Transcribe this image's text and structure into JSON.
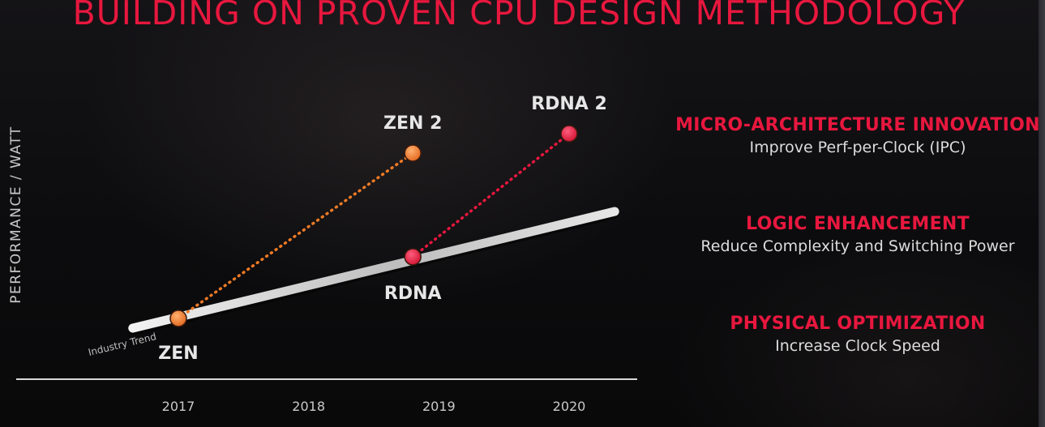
{
  "slide": {
    "title": "BUILDING ON PROVEN CPU DESIGN METHODOLOGY"
  },
  "chart_data": {
    "type": "line",
    "ylabel": "PERFORMANCE / WATT",
    "x_ticks": [
      "2017",
      "2018",
      "2019",
      "2020"
    ],
    "xlim": [
      2017,
      2020
    ],
    "ylim": [
      0,
      1
    ],
    "trend": {
      "name": "Industry Trend",
      "x": [
        2016.65,
        2020.35
      ],
      "y": [
        0.1,
        0.46
      ]
    },
    "series": [
      {
        "points": [
          {
            "label": "ZEN",
            "x": 2017.0,
            "y": 0.13
          },
          {
            "label": "ZEN 2",
            "x": 2018.8,
            "y": 0.64
          }
        ],
        "color": "#f07a24"
      },
      {
        "points": [
          {
            "label": "RDNA",
            "x": 2018.8,
            "y": 0.32
          },
          {
            "label": "RDNA 2",
            "x": 2020.0,
            "y": 0.7
          }
        ],
        "color": "#e8173e"
      }
    ],
    "grid": false
  },
  "panel": {
    "items": [
      {
        "heading": "MICRO-ARCHITECTURE INNOVATION",
        "text": "Improve Perf-per-Clock (IPC)"
      },
      {
        "heading": "LOGIC ENHANCEMENT",
        "text": "Reduce Complexity and Switching Power"
      },
      {
        "heading": "PHYSICAL OPTIMIZATION",
        "text": "Increase Clock Speed"
      }
    ]
  },
  "colors": {
    "accent": "#e8173e",
    "orange": "#f07a24",
    "background": "#0b0b0d"
  }
}
